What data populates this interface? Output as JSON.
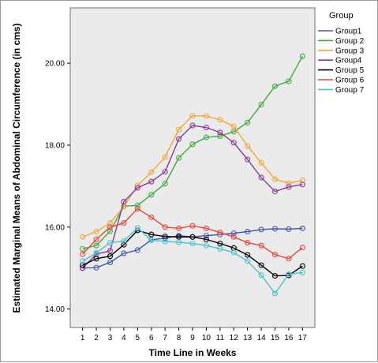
{
  "chart_data": {
    "type": "line",
    "title": "",
    "xlabel": "Time Line in Weeks",
    "ylabel": "Estimated Marginal Means of Abdominal Circumference (in cms)",
    "x": [
      1,
      2,
      3,
      4,
      5,
      6,
      7,
      8,
      9,
      10,
      11,
      12,
      13,
      14,
      15,
      16,
      17
    ],
    "x_ticks": [
      "1",
      "2",
      "3",
      "4",
      "5",
      "6",
      "7",
      "8",
      "9",
      "10",
      "11",
      "12",
      "13",
      "14",
      "15",
      "16",
      "17"
    ],
    "y_ticks": [
      "14.00",
      "16.00",
      "18.00",
      "20.00"
    ],
    "y_tick_values": [
      14,
      16,
      18,
      20
    ],
    "ylim": [
      13.55,
      21.35
    ],
    "xlim": [
      0.1,
      17.9
    ],
    "grid": false,
    "legend_position": "right",
    "plot_background": "#ebebeb",
    "legend_title": "Group",
    "series": [
      {
        "name": "Group1",
        "color": "#4656a8",
        "values": [
          15.0,
          15.01,
          15.14,
          15.36,
          15.44,
          15.69,
          15.73,
          15.79,
          15.76,
          15.79,
          15.82,
          15.85,
          15.89,
          15.94,
          15.96,
          15.95,
          15.97
        ]
      },
      {
        "name": "Group 2",
        "color": "#42a93f",
        "values": [
          15.47,
          15.55,
          15.9,
          16.51,
          16.53,
          16.79,
          17.06,
          17.69,
          18.02,
          18.19,
          18.22,
          18.33,
          18.55,
          18.99,
          19.44,
          19.56,
          20.17
        ]
      },
      {
        "name": "Group 3",
        "color": "#f4a63a",
        "values": [
          15.76,
          15.89,
          16.1,
          16.5,
          17.02,
          17.34,
          17.71,
          18.38,
          18.72,
          18.71,
          18.62,
          18.46,
          17.98,
          17.57,
          17.17,
          17.07,
          17.14
        ]
      },
      {
        "name": "Group4",
        "color": "#8b3a96",
        "values": [
          15.0,
          15.34,
          15.42,
          16.62,
          16.96,
          17.11,
          17.35,
          18.15,
          18.48,
          18.43,
          18.31,
          18.06,
          17.65,
          17.21,
          16.87,
          16.98,
          17.04
        ]
      },
      {
        "name": "Group 5",
        "color": "#000000",
        "values": [
          15.07,
          15.23,
          15.29,
          15.57,
          15.92,
          15.82,
          15.77,
          15.76,
          15.76,
          15.7,
          15.6,
          15.49,
          15.32,
          15.07,
          14.81,
          14.82,
          15.05
        ]
      },
      {
        "name": "Group 6",
        "color": "#e4473b",
        "values": [
          15.34,
          15.7,
          16.0,
          16.1,
          16.45,
          16.24,
          16.0,
          15.97,
          16.03,
          15.97,
          15.87,
          15.76,
          15.62,
          15.55,
          15.33,
          15.23,
          15.5
        ]
      },
      {
        "name": "Group 7",
        "color": "#4ec1cd",
        "values": [
          15.17,
          15.37,
          15.62,
          15.66,
          15.98,
          15.68,
          15.65,
          15.63,
          15.6,
          15.55,
          15.47,
          15.38,
          15.17,
          14.83,
          14.38,
          14.85,
          14.89
        ]
      }
    ]
  }
}
